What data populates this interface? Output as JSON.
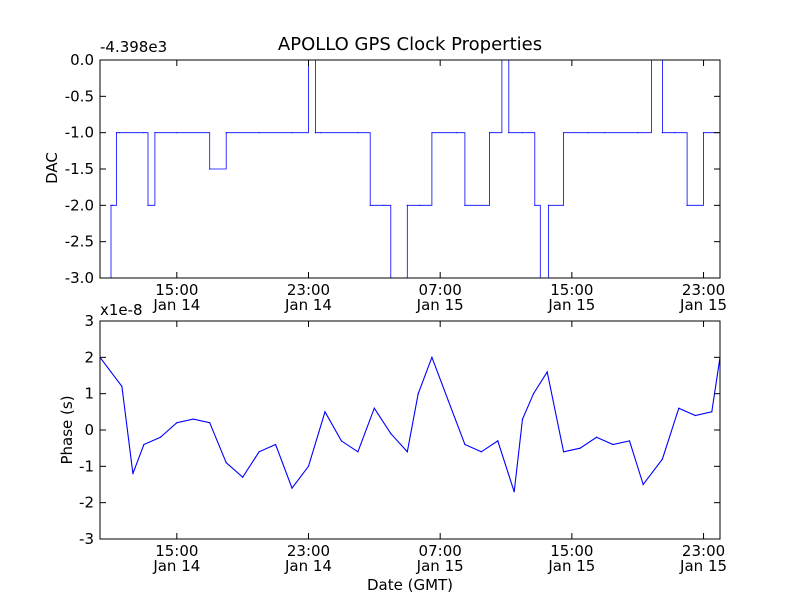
{
  "chart_data": [
    {
      "type": "line",
      "title": "APOLLO GPS Clock Properties",
      "offset_text": "-4.398e3",
      "ylabel": "DAC",
      "xlabel": "",
      "ylim": [
        -3.0,
        0.0
      ],
      "xlim": [
        "Jan 14 10:20",
        "Jan 16 00:00"
      ],
      "yticks": [
        "0.0",
        "-0.5",
        "-1.0",
        "-1.5",
        "-2.0",
        "-2.5",
        "-3.0"
      ],
      "xticks": [
        {
          "time": "15:00",
          "date": "Jan 14"
        },
        {
          "time": "23:00",
          "date": "Jan 14"
        },
        {
          "time": "07:00",
          "date": "Jan 15"
        },
        {
          "time": "15:00",
          "date": "Jan 15"
        },
        {
          "time": "23:00",
          "date": "Jan 15"
        }
      ],
      "color": "#0000ff",
      "series": [
        {
          "x": [
            "Jan 14 10:20",
            "Jan 14 11:00",
            "Jan 14 11:05",
            "Jan 14 11:20",
            "Jan 14 11:30",
            "Jan 14 13:00",
            "Jan 14 13:15",
            "Jan 14 13:40",
            "Jan 14 15:00",
            "Jan 14 17:00",
            "Jan 14 18:00",
            "Jan 14 20:00",
            "Jan 14 22:00",
            "Jan 14 23:00",
            "Jan 14 23:25",
            "Jan 14 23:45",
            "Jan 15 02:00",
            "Jan 15 02:45",
            "Jan 15 03:35",
            "Jan 15 04:00",
            "Jan 15 05:00",
            "Jan 15 05:45",
            "Jan 15 06:30",
            "Jan 15 08:00",
            "Jan 15 08:30",
            "Jan 15 10:00",
            "Jan 15 10:45",
            "Jan 15 11:10",
            "Jan 15 12:00",
            "Jan 15 12:45",
            "Jan 15 13:05",
            "Jan 15 13:35",
            "Jan 15 14:30",
            "Jan 15 16:00",
            "Jan 15 17:00",
            "Jan 15 19:00",
            "Jan 15 19:50",
            "Jan 15 20:30",
            "Jan 15 21:15",
            "Jan 15 22:00",
            "Jan 15 23:00",
            "Jan 16 00:00"
          ],
          "y": [
            -3.0,
            -2.0,
            -2.0,
            -1.0,
            -1.0,
            -1.0,
            -2.0,
            -1.0,
            -1.0,
            -1.5,
            -1.0,
            -1.0,
            -1.0,
            0.0,
            -1.0,
            -1.0,
            -1.0,
            -2.0,
            -2.0,
            -3.0,
            -2.0,
            -2.0,
            -1.0,
            -1.0,
            -2.0,
            -1.0,
            0.0,
            -1.0,
            -1.0,
            -2.0,
            -3.0,
            -2.0,
            -1.0,
            -1.0,
            -1.0,
            -1.0,
            0.0,
            -1.0,
            -1.0,
            -2.0,
            -1.0,
            -1.0
          ]
        }
      ]
    },
    {
      "type": "line",
      "title": "",
      "offset_text": "x1e-8",
      "ylabel": "Phase (s)",
      "xlabel": "Date (GMT)",
      "ylim": [
        -3,
        3
      ],
      "xlim": [
        "Jan 14 10:20",
        "Jan 16 00:00"
      ],
      "yticks": [
        "3",
        "2",
        "1",
        "0",
        "-1",
        "-2",
        "-3"
      ],
      "xticks": [
        {
          "time": "15:00",
          "date": "Jan 14"
        },
        {
          "time": "23:00",
          "date": "Jan 14"
        },
        {
          "time": "07:00",
          "date": "Jan 15"
        },
        {
          "time": "15:00",
          "date": "Jan 15"
        },
        {
          "time": "23:00",
          "date": "Jan 15"
        }
      ],
      "color": "#0000ff",
      "series": [
        {
          "x": [
            "Jan 14 10:20",
            "Jan 14 11:00",
            "Jan 14 11:40",
            "Jan 14 12:20",
            "Jan 14 13:00",
            "Jan 14 14:00",
            "Jan 14 15:00",
            "Jan 14 16:00",
            "Jan 14 17:00",
            "Jan 14 18:00",
            "Jan 14 19:00",
            "Jan 14 20:00",
            "Jan 14 21:00",
            "Jan 14 22:00",
            "Jan 14 23:00",
            "Jan 15 00:00",
            "Jan 15 01:00",
            "Jan 15 02:00",
            "Jan 15 03:00",
            "Jan 15 04:00",
            "Jan 15 05:00",
            "Jan 15 05:40",
            "Jan 15 06:30",
            "Jan 15 07:30",
            "Jan 15 08:30",
            "Jan 15 09:30",
            "Jan 15 10:30",
            "Jan 15 11:30",
            "Jan 15 12:00",
            "Jan 15 12:40",
            "Jan 15 13:30",
            "Jan 15 14:30",
            "Jan 15 15:30",
            "Jan 15 16:30",
            "Jan 15 17:30",
            "Jan 15 18:30",
            "Jan 15 19:20",
            "Jan 15 20:30",
            "Jan 15 21:30",
            "Jan 15 22:30",
            "Jan 15 23:30",
            "Jan 16 00:00"
          ],
          "y": [
            2.0,
            1.6,
            1.2,
            -1.2,
            -0.4,
            -0.2,
            0.2,
            0.3,
            0.2,
            -0.9,
            -1.3,
            -0.6,
            -0.4,
            -1.6,
            -1.0,
            0.5,
            -0.3,
            -0.6,
            0.6,
            -0.1,
            -0.6,
            1.0,
            2.0,
            0.8,
            -0.4,
            -0.6,
            -0.3,
            -1.7,
            0.3,
            1.0,
            1.6,
            -0.6,
            -0.5,
            -0.2,
            -0.4,
            -0.3,
            -1.5,
            -0.8,
            0.6,
            0.4,
            0.5,
            2.0
          ]
        }
      ]
    }
  ]
}
